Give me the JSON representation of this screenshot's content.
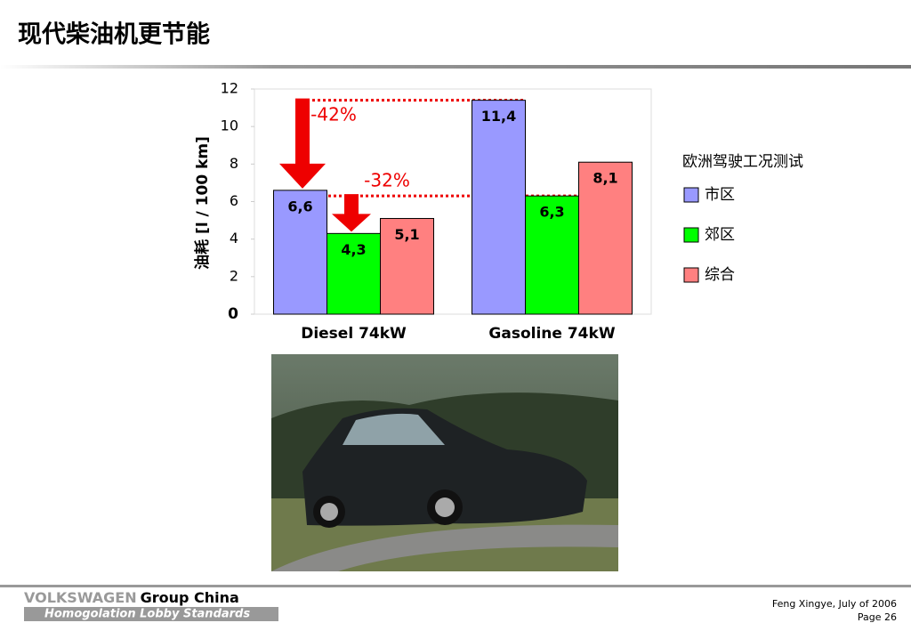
{
  "title": "现代柴油机更节能",
  "chart_data": {
    "type": "bar",
    "ylabel": "油耗 [l / 100 km]",
    "categories": [
      "Diesel 74kW",
      "Gasoline 74kW"
    ],
    "legend_title": "欧洲驾驶工况测试",
    "series": [
      {
        "name": "市区",
        "color": "#9999ff",
        "values": [
          6.6,
          11.4
        ],
        "value_labels": [
          "6,6",
          "11,4"
        ]
      },
      {
        "name": "郊区",
        "color": "#00ff00",
        "values": [
          4.3,
          6.3
        ],
        "value_labels": [
          "4,3",
          "6,3"
        ]
      },
      {
        "name": "综合",
        "color": "#ff8080",
        "values": [
          5.1,
          8.1
        ],
        "value_labels": [
          "5,1",
          "8,1"
        ]
      }
    ],
    "annotations": [
      "-42%",
      "-32%"
    ],
    "ylim": [
      0,
      12
    ],
    "yticks": [
      0,
      2,
      4,
      6,
      8,
      10,
      12
    ],
    "grid": false
  },
  "footer": {
    "brand": "VOLKSWAGEN",
    "brand_suffix": "Group China",
    "tagline": "Homogolation Lobby Standards",
    "author": "Feng Xingye, July of  2006",
    "page": "Page 26"
  }
}
